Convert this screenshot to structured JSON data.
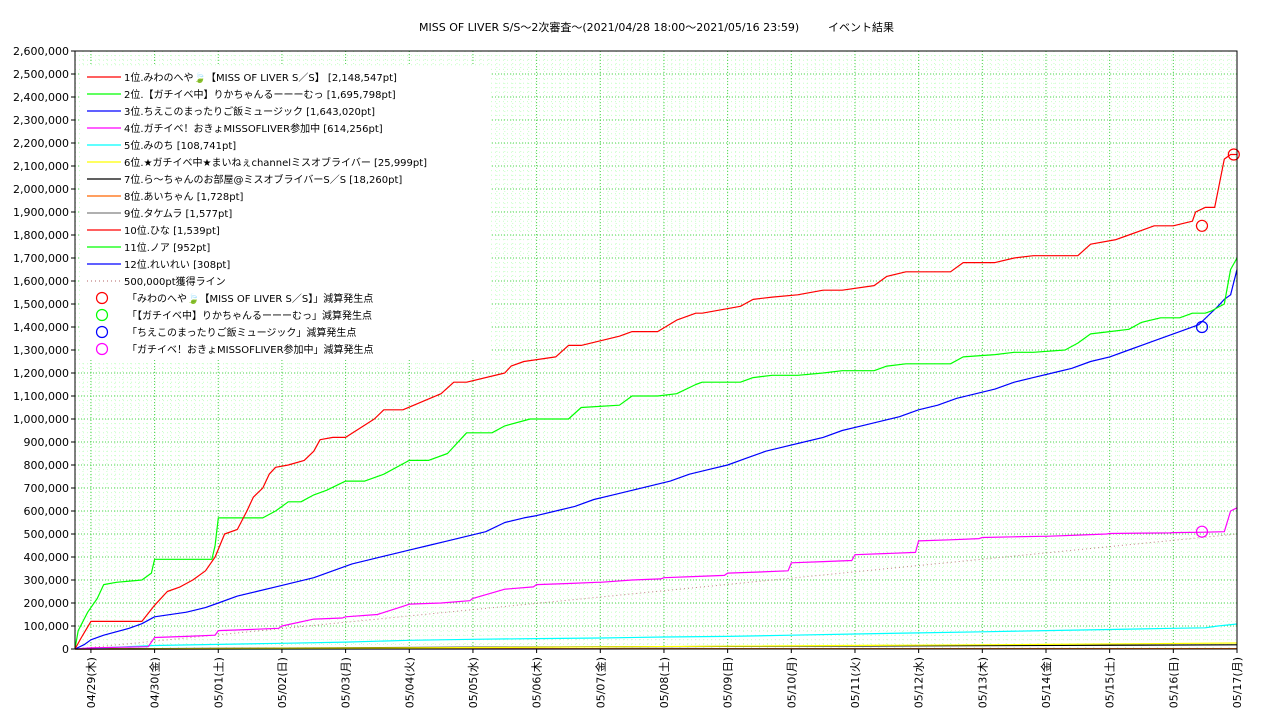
{
  "chart_data": {
    "type": "line",
    "title": "MISS OF LIVER S/S～2次審査～(2021/04/28 18:00～2021/05/16 23:59)",
    "title_suffix": "イベント結果",
    "ylim": [
      0,
      2600000
    ],
    "yticks": [
      0,
      100000,
      200000,
      300000,
      400000,
      500000,
      600000,
      700000,
      800000,
      900000,
      1000000,
      1100000,
      1200000,
      1300000,
      1400000,
      1500000,
      1600000,
      1700000,
      1800000,
      1900000,
      2000000,
      2100000,
      2200000,
      2300000,
      2400000,
      2500000,
      2600000
    ],
    "ytick_labels": [
      "0",
      "100,000",
      "200,000",
      "300,000",
      "400,000",
      "500,000",
      "600,000",
      "700,000",
      "800,000",
      "900,000",
      "1,000,000",
      "1,100,000",
      "1,200,000",
      "1,300,000",
      "1,400,000",
      "1,500,000",
      "1,600,000",
      "1,700,000",
      "1,800,000",
      "1,900,000",
      "2,000,000",
      "2,100,000",
      "2,200,000",
      "2,300,000",
      "2,400,000",
      "2,500,000",
      "2,600,000"
    ],
    "xlim": [
      -0.25,
      18.0
    ],
    "xticks": [
      0,
      1,
      2,
      3,
      4,
      5,
      6,
      7,
      8,
      9,
      10,
      11,
      12,
      13,
      14,
      15,
      16,
      17,
      18
    ],
    "xtick_labels": [
      "04/29(木)",
      "04/30(金)",
      "05/01(土)",
      "05/02(日)",
      "05/03(月)",
      "05/04(火)",
      "05/05(水)",
      "05/06(木)",
      "05/07(金)",
      "05/08(土)",
      "05/09(日)",
      "05/10(月)",
      "05/11(火)",
      "05/12(水)",
      "05/13(木)",
      "05/14(金)",
      "05/15(土)",
      "05/16(日)",
      "05/17(月)"
    ],
    "grid": true,
    "legend_position": "top-left",
    "series": [
      {
        "name": "1位.みわのへや🍃【MISS OF LIVER S／S】 [2,148,547pt]",
        "color": "#ff0000",
        "x": [
          -0.25,
          -0.15,
          0.0,
          0.8,
          1.0,
          1.2,
          1.4,
          1.6,
          1.8,
          1.95,
          2.1,
          2.3,
          2.45,
          2.55,
          2.7,
          2.8,
          2.9,
          3.1,
          3.35,
          3.5,
          3.6,
          3.8,
          4.0,
          4.45,
          4.6,
          4.9,
          5.5,
          5.7,
          5.9,
          6.5,
          6.6,
          6.8,
          7.3,
          7.5,
          7.7,
          8.3,
          8.5,
          8.9,
          9.2,
          9.5,
          9.6,
          10.2,
          10.4,
          10.7,
          11.1,
          11.5,
          11.8,
          12.3,
          12.5,
          12.8,
          13.5,
          13.7,
          14.2,
          14.5,
          14.8,
          15.5,
          15.7,
          16.1,
          16.3,
          16.5,
          16.7,
          17.0,
          17.3,
          17.35,
          17.5,
          17.65,
          17.8,
          17.9,
          18.0
        ],
        "y": [
          0,
          50000,
          120000,
          120000,
          190000,
          250000,
          270000,
          300000,
          340000,
          400000,
          500000,
          520000,
          600000,
          660000,
          700000,
          760000,
          790000,
          800000,
          820000,
          860000,
          910000,
          920000,
          920000,
          1000000,
          1040000,
          1040000,
          1110000,
          1160000,
          1160000,
          1200000,
          1230000,
          1250000,
          1270000,
          1320000,
          1320000,
          1360000,
          1380000,
          1380000,
          1430000,
          1460000,
          1460000,
          1490000,
          1520000,
          1530000,
          1540000,
          1560000,
          1560000,
          1580000,
          1620000,
          1640000,
          1640000,
          1680000,
          1680000,
          1700000,
          1710000,
          1710000,
          1760000,
          1780000,
          1800000,
          1820000,
          1840000,
          1840000,
          1860000,
          1900000,
          1920000,
          1920000,
          2130000,
          2150000,
          2150000
        ]
      },
      {
        "name": "2位.【ガチイベ中】りかちゃんるーーーむっ [1,695,798pt]",
        "color": "#00ff00",
        "x": [
          -0.25,
          -0.2,
          -0.05,
          0.1,
          0.2,
          0.4,
          0.8,
          0.95,
          1.0,
          1.5,
          1.9,
          1.95,
          2.0,
          2.5,
          2.7,
          2.9,
          3.1,
          3.3,
          3.5,
          3.7,
          4.0,
          4.3,
          4.6,
          5.0,
          5.3,
          5.6,
          5.9,
          6.3,
          6.5,
          6.9,
          7.3,
          7.5,
          7.7,
          8.3,
          8.5,
          8.9,
          9.2,
          9.5,
          9.6,
          10.2,
          10.4,
          10.7,
          11.1,
          11.5,
          11.8,
          12.3,
          12.5,
          12.8,
          13.5,
          13.7,
          14.2,
          14.5,
          14.8,
          15.3,
          15.5,
          15.7,
          16.0,
          16.3,
          16.5,
          16.8,
          17.1,
          17.3,
          17.5,
          17.6,
          17.8,
          17.9,
          18.0
        ],
        "y": [
          0,
          80000,
          160000,
          220000,
          280000,
          290000,
          300000,
          330000,
          390000,
          390000,
          390000,
          450000,
          570000,
          570000,
          570000,
          600000,
          640000,
          640000,
          670000,
          690000,
          730000,
          730000,
          760000,
          820000,
          820000,
          850000,
          940000,
          940000,
          970000,
          1000000,
          1000000,
          1000000,
          1050000,
          1060000,
          1100000,
          1100000,
          1110000,
          1150000,
          1160000,
          1160000,
          1180000,
          1190000,
          1190000,
          1200000,
          1210000,
          1210000,
          1230000,
          1240000,
          1240000,
          1270000,
          1280000,
          1290000,
          1290000,
          1300000,
          1330000,
          1370000,
          1380000,
          1390000,
          1420000,
          1440000,
          1440000,
          1460000,
          1460000,
          1470000,
          1500000,
          1650000,
          1700000
        ]
      },
      {
        "name": "3位.ちえこのまったりご飯ミュージック [1,643,020pt]",
        "color": "#0000ff",
        "x": [
          -0.25,
          -0.1,
          0.0,
          0.2,
          0.6,
          0.8,
          1.0,
          1.5,
          1.8,
          2.0,
          2.3,
          2.6,
          2.9,
          3.2,
          3.5,
          3.8,
          4.1,
          4.4,
          4.7,
          5.0,
          5.3,
          5.6,
          5.9,
          6.2,
          6.5,
          6.8,
          7.0,
          7.3,
          7.6,
          7.9,
          8.2,
          8.5,
          8.8,
          9.1,
          9.4,
          9.7,
          10.0,
          10.3,
          10.6,
          10.9,
          11.2,
          11.5,
          11.8,
          12.1,
          12.4,
          12.7,
          13.0,
          13.3,
          13.6,
          13.9,
          14.2,
          14.5,
          14.8,
          15.1,
          15.4,
          15.7,
          16.0,
          16.3,
          16.6,
          16.9,
          17.2,
          17.4,
          17.55,
          17.7,
          17.8,
          17.9,
          18.0
        ],
        "y": [
          0,
          20000,
          40000,
          60000,
          90000,
          110000,
          140000,
          160000,
          180000,
          200000,
          230000,
          250000,
          270000,
          290000,
          310000,
          340000,
          370000,
          390000,
          410000,
          430000,
          450000,
          470000,
          490000,
          510000,
          550000,
          570000,
          580000,
          600000,
          620000,
          650000,
          670000,
          690000,
          710000,
          730000,
          760000,
          780000,
          800000,
          830000,
          860000,
          880000,
          900000,
          920000,
          950000,
          970000,
          990000,
          1010000,
          1040000,
          1060000,
          1090000,
          1110000,
          1130000,
          1160000,
          1180000,
          1200000,
          1220000,
          1250000,
          1270000,
          1300000,
          1330000,
          1360000,
          1390000,
          1410000,
          1450000,
          1490000,
          1520000,
          1540000,
          1650000
        ]
      },
      {
        "name": "4位.ガチイベ！おきょMISSOFLIVER参加中 [614,256pt]",
        "color": "#ff00ff",
        "x": [
          -0.25,
          0.0,
          0.5,
          0.9,
          1.0,
          1.5,
          1.95,
          2.0,
          2.5,
          2.95,
          3.0,
          3.5,
          3.95,
          4.0,
          4.5,
          4.95,
          5.0,
          5.5,
          5.95,
          6.0,
          6.5,
          6.95,
          7.0,
          7.5,
          7.95,
          8.0,
          8.5,
          8.95,
          9.0,
          9.5,
          9.95,
          10.0,
          10.5,
          10.95,
          11.0,
          11.5,
          11.95,
          12.0,
          12.5,
          12.95,
          13.0,
          13.5,
          13.95,
          14.0,
          14.5,
          14.95,
          15.0,
          15.5,
          15.95,
          16.0,
          16.5,
          16.95,
          17.0,
          17.5,
          17.8,
          17.9,
          18.0
        ],
        "y": [
          0,
          5000,
          8000,
          10000,
          50000,
          55000,
          60000,
          80000,
          85000,
          90000,
          100000,
          130000,
          135000,
          140000,
          150000,
          190000,
          195000,
          200000,
          210000,
          220000,
          260000,
          270000,
          280000,
          285000,
          290000,
          290000,
          300000,
          305000,
          310000,
          315000,
          320000,
          330000,
          335000,
          340000,
          375000,
          380000,
          385000,
          410000,
          415000,
          420000,
          470000,
          475000,
          480000,
          485000,
          488000,
          490000,
          490000,
          495000,
          500000,
          502000,
          504000,
          505000,
          506000,
          508000,
          510000,
          600000,
          614000
        ]
      },
      {
        "name": "5位.みのち [108,741pt]",
        "color": "#00ffff",
        "x": [
          -0.25,
          1.0,
          2.0,
          3.0,
          4.0,
          5.0,
          6.0,
          7.0,
          8.0,
          9.0,
          10.0,
          11.0,
          12.0,
          13.0,
          14.0,
          15.0,
          16.0,
          17.0,
          17.5,
          17.7,
          18.0
        ],
        "y": [
          0,
          15000,
          20000,
          25000,
          30000,
          38000,
          42000,
          45000,
          48000,
          52000,
          55000,
          60000,
          65000,
          70000,
          75000,
          80000,
          85000,
          90000,
          92000,
          100000,
          108741
        ]
      },
      {
        "name": "6位.★ガチイベ中★まいねぇchannelミスオブライバー [25,999pt]",
        "color": "#ffff00",
        "x": [
          -0.25,
          5.0,
          10.0,
          15.0,
          18.0
        ],
        "y": [
          0,
          5000,
          12000,
          20000,
          26000
        ]
      },
      {
        "name": "7位.ら〜ちゃんのお部屋@ミスオブライバーS／S [18,260pt]",
        "color": "#000000",
        "x": [
          -0.25,
          6.0,
          12.0,
          18.0
        ],
        "y": [
          0,
          8000,
          13000,
          18260
        ]
      },
      {
        "name": "8位.あいちゃん [1,728pt]",
        "color": "#ff6600",
        "x": [
          -0.25,
          18.0
        ],
        "y": [
          0,
          1728
        ]
      },
      {
        "name": "9位.タケムラ [1,577pt]",
        "color": "#808080",
        "x": [
          -0.25,
          18.0
        ],
        "y": [
          0,
          1577
        ]
      },
      {
        "name": "10位.ひな [1,539pt]",
        "color": "#ff0000",
        "x": [
          -0.25,
          18.0
        ],
        "y": [
          0,
          1539
        ]
      },
      {
        "name": "11位.ノア [952pt]",
        "color": "#00ff00",
        "x": [
          -0.25,
          18.0
        ],
        "y": [
          0,
          952
        ]
      },
      {
        "name": "12位.れいれい [308pt]",
        "color": "#0000ff",
        "x": [
          -0.25,
          18.0
        ],
        "y": [
          0,
          308
        ]
      },
      {
        "name": "500,000pt獲得ライン",
        "color": "#c08080",
        "dashed": true,
        "x": [
          -0.25,
          18.0
        ],
        "y": [
          0,
          500000
        ]
      }
    ],
    "markers": [
      {
        "name": "「みわのへや🍃【MISS OF LIVER S／S】」減算発生点",
        "color": "#ff0000",
        "points": [
          {
            "x": 17.45,
            "y": 1840000
          },
          {
            "x": 17.95,
            "y": 2150000
          }
        ]
      },
      {
        "name": "「【ガチイベ中】りかちゃんるーーーむっ」減算発生点",
        "color": "#00ff00",
        "points": []
      },
      {
        "name": "「ちえこのまったりご飯ミュージック」減算発生点",
        "color": "#0000ff",
        "points": [
          {
            "x": 17.45,
            "y": 1400000
          }
        ]
      },
      {
        "name": "「ガチイベ！おきょMISSOFLIVER参加中」減算発生点",
        "color": "#ff00ff",
        "points": [
          {
            "x": 17.45,
            "y": 510000
          }
        ]
      }
    ]
  }
}
